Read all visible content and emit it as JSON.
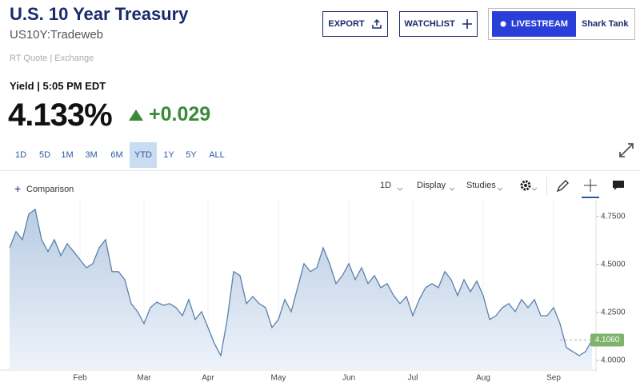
{
  "header": {
    "title": "U.S. 10 Year Treasury",
    "symbol": "US10Y:Tradeweb",
    "source": "RT Quote | Exchange",
    "buttons": [
      "EXPORT",
      "WATCHLIST",
      "LIVESTREAM",
      "Shark Tank"
    ]
  },
  "quote": {
    "label": "Yield | 5:05 PM EDT",
    "price": "4.133%",
    "change": "+0.029"
  },
  "ranges": {
    "items": [
      "1D",
      "5D",
      "1M",
      "3M",
      "6M",
      "YTD",
      "1Y",
      "5Y",
      "ALL"
    ],
    "active": "YTD"
  },
  "toolbar": {
    "comparison": "Comparison",
    "interval": "1D",
    "display": "Display",
    "studies": "Studies"
  },
  "chart_data": {
    "type": "area",
    "categories": [
      null,
      null,
      null,
      null,
      null,
      null,
      null,
      null,
      null,
      null,
      null,
      "Feb",
      null,
      null,
      null,
      null,
      null,
      null,
      null,
      null,
      null,
      "Mar",
      null,
      null,
      null,
      null,
      null,
      null,
      null,
      null,
      null,
      "Apr",
      null,
      null,
      null,
      null,
      null,
      null,
      null,
      null,
      null,
      null,
      "May",
      null,
      null,
      null,
      null,
      null,
      null,
      null,
      null,
      null,
      null,
      "Jun",
      null,
      null,
      null,
      null,
      null,
      null,
      null,
      null,
      null,
      "Jul",
      null,
      null,
      null,
      null,
      null,
      null,
      null,
      null,
      null,
      null,
      "Aug",
      null,
      null,
      null,
      null,
      null,
      null,
      null,
      null,
      null,
      null,
      "Sep",
      null,
      null,
      null,
      null,
      null,
      null
    ],
    "series": [
      {
        "name": "US10Y",
        "color": "#5a80ab",
        "values": [
          4.587,
          4.671,
          4.629,
          4.762,
          4.787,
          4.629,
          4.567,
          4.629,
          4.546,
          4.608,
          4.567,
          4.525,
          4.483,
          4.504,
          4.587,
          4.629,
          4.463,
          4.463,
          4.421,
          4.296,
          4.254,
          4.192,
          4.275,
          4.304,
          4.287,
          4.296,
          4.275,
          4.233,
          4.317,
          4.213,
          4.254,
          4.171,
          4.088,
          4.025,
          4.213,
          4.463,
          4.442,
          4.296,
          4.333,
          4.296,
          4.275,
          4.171,
          4.213,
          4.317,
          4.254,
          4.379,
          4.504,
          4.463,
          4.483,
          4.587,
          4.504,
          4.4,
          4.442,
          4.504,
          4.421,
          4.483,
          4.4,
          4.442,
          4.379,
          4.4,
          4.338,
          4.296,
          4.333,
          4.233,
          4.317,
          4.379,
          4.4,
          4.379,
          4.463,
          4.421,
          4.338,
          4.421,
          4.358,
          4.413,
          4.338,
          4.213,
          4.233,
          4.275,
          4.296,
          4.254,
          4.317,
          4.275,
          4.317,
          4.233,
          4.233,
          4.275,
          4.192,
          4.067,
          4.046,
          4.025,
          4.046,
          4.106
        ]
      }
    ],
    "current": {
      "value": 4.106,
      "label": "4.1060",
      "color": "#7fb36b"
    },
    "ylim": [
      3.95,
      4.82
    ],
    "yticks": [
      {
        "value": 4.0,
        "label": "4.0000"
      },
      {
        "value": 4.25,
        "label": "4.2500"
      },
      {
        "value": 4.5,
        "label": "4.5000"
      },
      {
        "value": 4.75,
        "label": "4.7500"
      }
    ],
    "grid": true
  }
}
